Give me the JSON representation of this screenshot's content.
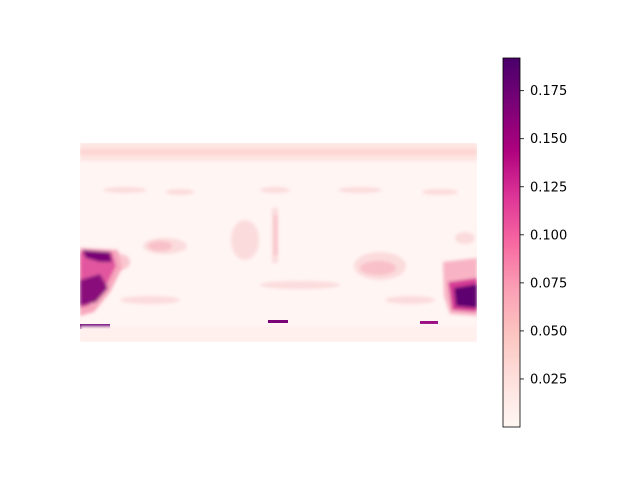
{
  "chart_data": {
    "type": "heatmap",
    "title": "",
    "xlabel": "",
    "ylabel": "",
    "axes_visible": false,
    "colormap": "RdPu",
    "colorbar": {
      "ticks": [
        0.025,
        0.05,
        0.075,
        0.1,
        0.125,
        0.15,
        0.175
      ],
      "tick_labels": [
        "0.025",
        "0.050",
        "0.075",
        "0.100",
        "0.125",
        "0.150",
        "0.175"
      ],
      "vmin": 0.0,
      "vmax": 0.192,
      "placement": "right"
    },
    "grid": false,
    "projection": "equirectangular panorama error map"
  },
  "colors": {
    "cmap_stops": [
      "#fff7f3",
      "#fde0dd",
      "#fcc5c0",
      "#fa9fb5",
      "#f768a1",
      "#dd3497",
      "#ae017e",
      "#7a0177",
      "#49006a"
    ]
  }
}
